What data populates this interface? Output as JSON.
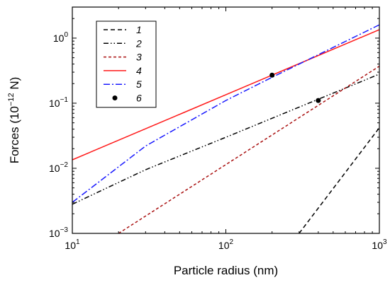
{
  "chart_data": {
    "type": "line",
    "xlabel": "Particle radius (nm)",
    "ylabel": "Forces (10",
    "ylabel_exp": "−12",
    "ylabel_unit": " N)",
    "xscale": "log",
    "yscale": "log",
    "xlim": [
      10,
      1000
    ],
    "ylim": [
      0.001,
      3
    ],
    "grid": false,
    "legend_position": "top-left",
    "x_ticks": [
      {
        "value": 10,
        "base": "10",
        "exp": "1"
      },
      {
        "value": 100,
        "base": "10",
        "exp": "2"
      },
      {
        "value": 1000,
        "base": "10",
        "exp": "3"
      }
    ],
    "y_ticks": [
      {
        "value": 0.001,
        "base": "10",
        "exp": "−3"
      },
      {
        "value": 0.01,
        "base": "10",
        "exp": "−2"
      },
      {
        "value": 0.1,
        "base": "10",
        "exp": "−1"
      },
      {
        "value": 1,
        "base": "10",
        "exp": "0"
      }
    ],
    "series": [
      {
        "name": "1",
        "color": "#000000",
        "dash": "6,4",
        "x": [
          300,
          1000
        ],
        "y": [
          0.001,
          0.042
        ]
      },
      {
        "name": "2",
        "color": "#000000",
        "dash": "7,3,1.5,3,1.5,3",
        "x": [
          10,
          30,
          100,
          1000
        ],
        "y": [
          0.0028,
          0.0095,
          0.03,
          0.28
        ]
      },
      {
        "name": "3",
        "color": "#aa1111",
        "dash": "4,3",
        "x": [
          20,
          1000
        ],
        "y": [
          0.001,
          0.37
        ]
      },
      {
        "name": "4",
        "color": "#ff1a1a",
        "dash": "",
        "x": [
          10,
          1000
        ],
        "y": [
          0.0135,
          1.35
        ]
      },
      {
        "name": "5",
        "color": "#1a1aff",
        "dash": "9,3,2,3",
        "x": [
          10,
          30,
          100,
          200,
          1000
        ],
        "y": [
          0.003,
          0.022,
          0.11,
          0.25,
          1.6
        ]
      },
      {
        "name": "6",
        "color": "#000000",
        "marker": "circle",
        "x": [
          200,
          400
        ],
        "y": [
          0.27,
          0.11
        ]
      }
    ]
  }
}
